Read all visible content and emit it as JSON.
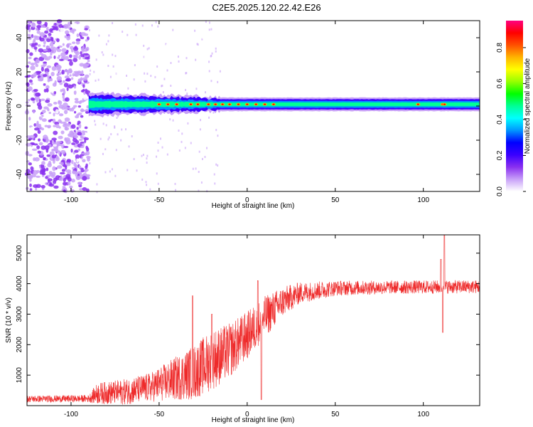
{
  "title": "C2E5.2025.120.22.42.E26",
  "chart_data": [
    {
      "type": "heatmap",
      "xlabel": "Height of straight line (km)",
      "ylabel": "Frequency (Hz)",
      "xlim": [
        -125,
        132
      ],
      "ylim": [
        -50,
        50
      ],
      "xticks": [
        -100,
        -50,
        0,
        50,
        100
      ],
      "yticks": [
        -40,
        -20,
        0,
        20,
        40
      ],
      "colorbar": {
        "label": "Normalized spectral amplitude",
        "range": [
          0.0,
          0.95
        ],
        "ticks": [
          "0.0",
          "0.2",
          "0.4",
          "0.6",
          "0.8"
        ],
        "colormap": [
          "#ffffff",
          "#c8a0f8",
          "#8a30f0",
          "#3a00ff",
          "#0000ff",
          "#0096ff",
          "#00ffff",
          "#00ff96",
          "#00ff00",
          "#96ff00",
          "#ffff00",
          "#ffb400",
          "#ff5000",
          "#ff0000",
          "#ff0080"
        ]
      },
      "band": {
        "center_hz": 1,
        "x_start": -90,
        "x_end": 132,
        "halfwidth_hz": [
          {
            "x": -90,
            "hz": 7
          },
          {
            "x": -60,
            "hz": 6
          },
          {
            "x": -30,
            "hz": 5
          },
          {
            "x": -15,
            "hz": 4
          },
          {
            "x": 132,
            "hz": 4
          }
        ],
        "peaks_x": [
          -50,
          -45,
          -40,
          -32,
          -28,
          -22,
          -18,
          -14,
          -10,
          -5,
          0,
          5,
          10,
          15,
          97,
          111,
          112
        ]
      },
      "noise_region_x": [
        -125,
        -90
      ]
    },
    {
      "type": "line",
      "xlabel": "Height of straight line (km)",
      "ylabel": "SNR (10 * v/v)",
      "xlim": [
        -125,
        132
      ],
      "ylim": [
        0,
        5600
      ],
      "xticks": [
        -100,
        -50,
        0,
        50,
        100
      ],
      "yticks": [
        1000,
        2000,
        3000,
        4000,
        5000
      ],
      "color": "#ee2a2a",
      "envelope": [
        {
          "x": -125,
          "mean": 220,
          "spread": 110
        },
        {
          "x": -90,
          "mean": 230,
          "spread": 120
        },
        {
          "x": -85,
          "mean": 400,
          "spread": 350
        },
        {
          "x": -70,
          "mean": 450,
          "spread": 420
        },
        {
          "x": -55,
          "mean": 600,
          "spread": 480
        },
        {
          "x": -45,
          "mean": 800,
          "spread": 650
        },
        {
          "x": -30,
          "mean": 1100,
          "spread": 900
        },
        {
          "x": -20,
          "mean": 1500,
          "spread": 1000
        },
        {
          "x": -10,
          "mean": 1800,
          "spread": 900
        },
        {
          "x": 0,
          "mean": 2300,
          "spread": 800
        },
        {
          "x": 10,
          "mean": 2900,
          "spread": 700
        },
        {
          "x": 20,
          "mean": 3400,
          "spread": 500
        },
        {
          "x": 30,
          "mean": 3700,
          "spread": 350
        },
        {
          "x": 50,
          "mean": 3850,
          "spread": 250
        },
        {
          "x": 80,
          "mean": 3880,
          "spread": 220
        },
        {
          "x": 132,
          "mean": 3900,
          "spread": 220
        }
      ],
      "spikes": [
        {
          "x": -31,
          "y": 3600
        },
        {
          "x": -20,
          "y": 3000
        },
        {
          "x": 6,
          "y": 4100
        },
        {
          "x": 8,
          "y": 200
        },
        {
          "x": 110,
          "y": 4800
        },
        {
          "x": 111,
          "y": 2400
        },
        {
          "x": 112,
          "y": 5600
        }
      ]
    }
  ]
}
